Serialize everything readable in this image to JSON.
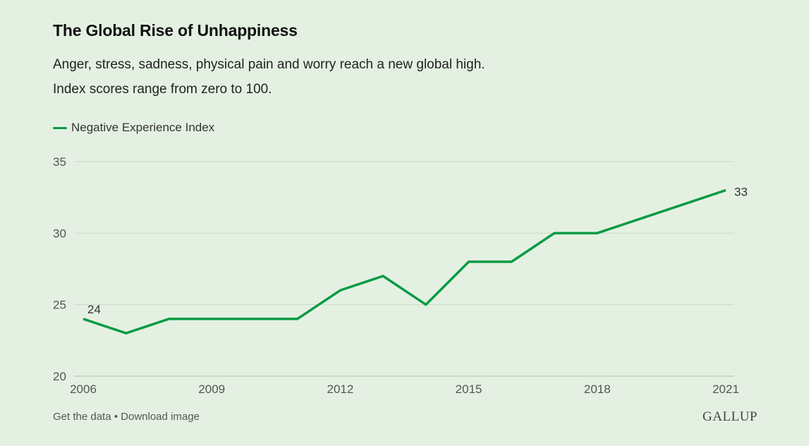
{
  "header": {
    "title": "The Global Rise of Unhappiness",
    "subtitle_line1": "Anger, stress, sadness, physical pain and worry reach a new global high.",
    "subtitle_line2": "Index scores range from zero to 100."
  },
  "footer": {
    "get_data": "Get the data",
    "separator": " • ",
    "download": "Download image",
    "brand": "GALLUP"
  },
  "colors": {
    "line": "#0a9a45",
    "grid": "#c9d9c6",
    "axis": "#b7cab3"
  },
  "chart_data": {
    "type": "line",
    "title": "The Global Rise of Unhappiness",
    "xlabel": "",
    "ylabel": "",
    "x": [
      2006,
      2007,
      2008,
      2009,
      2010,
      2011,
      2012,
      2013,
      2014,
      2015,
      2016,
      2017,
      2018,
      2019,
      2020,
      2021
    ],
    "series": [
      {
        "name": "Negative Experience Index",
        "values": [
          24,
          23,
          24,
          24,
          24,
          24,
          26,
          27,
          25,
          28,
          28,
          30,
          30,
          31,
          32,
          33
        ]
      }
    ],
    "x_ticks": [
      2006,
      2009,
      2012,
      2015,
      2018,
      2021
    ],
    "y_ticks": [
      20,
      25,
      30,
      35
    ],
    "xlim": [
      2006,
      2021
    ],
    "ylim": [
      20,
      35
    ],
    "annotations": [
      {
        "x": 2006,
        "label": "24"
      },
      {
        "x": 2021,
        "label": "33"
      }
    ],
    "legend": "top-left",
    "grid": true
  }
}
